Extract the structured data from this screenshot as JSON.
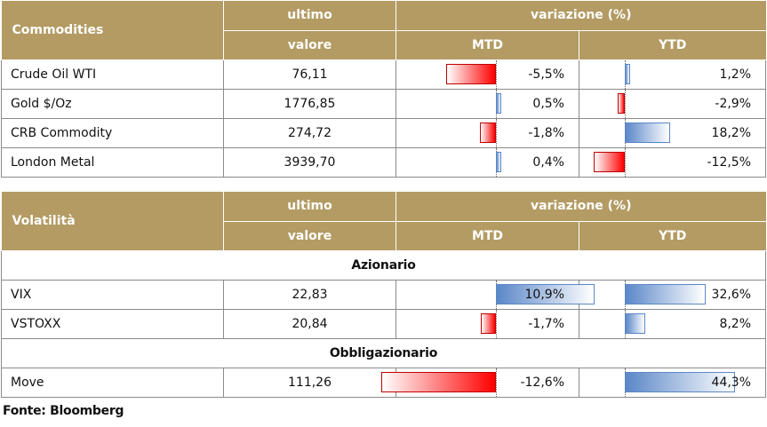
{
  "commodities": {
    "title": "Commodities",
    "col_last_1": "ultimo",
    "col_last_2": "valore",
    "col_change": "variazione (%)",
    "col_mtd": "MTD",
    "col_ytd": "YTD",
    "rows": [
      {
        "name": "Crude Oil WTI",
        "value": "76,11",
        "mtd": -5.5,
        "mtd_label": "-5,5%",
        "ytd": 1.2,
        "ytd_label": "1,2%"
      },
      {
        "name": "Gold $/Oz",
        "value": "1776,85",
        "mtd": 0.5,
        "mtd_label": "0,5%",
        "ytd": -2.9,
        "ytd_label": "-2,9%"
      },
      {
        "name": "CRB Commodity",
        "value": "274,72",
        "mtd": -1.8,
        "mtd_label": "-1,8%",
        "ytd": 18.2,
        "ytd_label": "18,2%"
      },
      {
        "name": "London Metal",
        "value": "3939,70",
        "mtd": 0.4,
        "mtd_label": "0,4%",
        "ytd": -12.5,
        "ytd_label": "-12,5%"
      }
    ]
  },
  "volatility": {
    "title": "Volatilità",
    "col_last_1": "ultimo",
    "col_last_2": "valore",
    "col_change": "variazione (%)",
    "col_mtd": "MTD",
    "col_ytd": "YTD",
    "section_equity": "Azionario",
    "section_bonds": "Obbligazionario",
    "equity_rows": [
      {
        "name": "VIX",
        "value": "22,83",
        "mtd": 10.9,
        "mtd_label": "10,9%",
        "ytd": 32.6,
        "ytd_label": "32,6%"
      },
      {
        "name": "VSTOXX",
        "value": "20,84",
        "mtd": -1.7,
        "mtd_label": "-1,7%",
        "ytd": 8.2,
        "ytd_label": "8,2%"
      }
    ],
    "bond_rows": [
      {
        "name": "Move",
        "value": "111,26",
        "mtd": -12.6,
        "mtd_label": "-12,6%",
        "ytd": 44.3,
        "ytd_label": "44,3%"
      }
    ]
  },
  "source": "Fonte: Bloomberg",
  "colors": {
    "header_bg": "#b39b63",
    "negative": "#ff0000",
    "positive": "#5b87c8"
  }
}
